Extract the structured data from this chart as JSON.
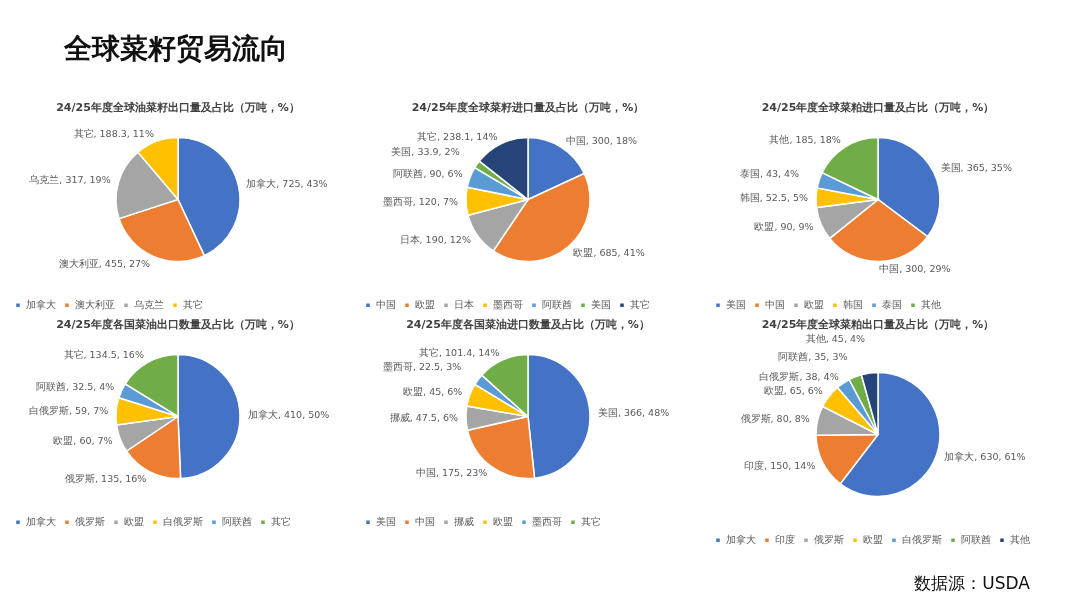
{
  "chart_data": [
    {
      "type": "pie",
      "title": "24/25年度全球油菜籽出口量及占比（万吨，%）",
      "categories": [
        "加拿大",
        "澳大利亚",
        "乌克兰",
        "其它"
      ],
      "values": [
        725,
        455,
        317,
        188.3
      ],
      "colors": [
        "#4472c4",
        "#ed7d31",
        "#a5a5a5",
        "#ffc000"
      ],
      "value_labels": [
        "加拿大, 725, 43%",
        "澳大利亚, 455, 27%",
        "乌克兰, 317, 19%",
        "其它, 188.3, 11%"
      ],
      "legend": "bottom"
    },
    {
      "type": "pie",
      "title": "24/25年度全球菜籽进口量及占比（万吨，%）",
      "categories": [
        "中国",
        "欧盟",
        "日本",
        "墨西哥",
        "阿联酋",
        "美国",
        "其它"
      ],
      "values": [
        300,
        685,
        190,
        120,
        90,
        33.9,
        238.1
      ],
      "colors": [
        "#4472c4",
        "#ed7d31",
        "#a5a5a5",
        "#ffc000",
        "#5b9bd5",
        "#70ad47",
        "#264478"
      ],
      "value_labels": [
        "中国, 300, 18%",
        "欧盟, 685, 41%",
        "日本, 190, 12%",
        "墨西哥, 120, 7%",
        "阿联酋, 90, 6%",
        "美国, 33.9, 2%",
        "其它, 238.1, 14%"
      ],
      "legend": "bottom"
    },
    {
      "type": "pie",
      "title": "24/25年度全球菜粕进口量及占比（万吨，%）",
      "categories": [
        "美国",
        "中国",
        "欧盟",
        "韩国",
        "泰国",
        "其他"
      ],
      "values": [
        365,
        300,
        90,
        52.5,
        43,
        185
      ],
      "colors": [
        "#4472c4",
        "#ed7d31",
        "#a5a5a5",
        "#ffc000",
        "#5b9bd5",
        "#70ad47"
      ],
      "value_labels": [
        "美国, 365, 35%",
        "中国, 300, 29%",
        "欧盟, 90, 9%",
        "韩国, 52.5, 5%",
        "泰国, 43, 4%",
        "其他, 185, 18%"
      ],
      "legend": "bottom"
    },
    {
      "type": "pie",
      "title": "24/25年度各国菜油出口数量及占比（万吨，%）",
      "categories": [
        "加拿大",
        "俄罗斯",
        "欧盟",
        "白俄罗斯",
        "阿联酋",
        "其它"
      ],
      "values": [
        410,
        135,
        60,
        59,
        32.5,
        134.5
      ],
      "colors": [
        "#4472c4",
        "#ed7d31",
        "#a5a5a5",
        "#ffc000",
        "#5b9bd5",
        "#70ad47"
      ],
      "value_labels": [
        "加拿大, 410, 50%",
        "俄罗斯, 135, 16%",
        "欧盟, 60, 7%",
        "白俄罗斯, 59, 7%",
        "阿联酋, 32.5, 4%",
        "其它, 134.5, 16%"
      ],
      "legend": "bottom"
    },
    {
      "type": "pie",
      "title": "24/25年度各国菜油进口数量及占比（万吨，%）",
      "categories": [
        "美国",
        "中国",
        "挪威",
        "欧盟",
        "墨西哥",
        "其它"
      ],
      "values": [
        366,
        175,
        47.5,
        45,
        22.5,
        101.4
      ],
      "colors": [
        "#4472c4",
        "#ed7d31",
        "#a5a5a5",
        "#ffc000",
        "#5b9bd5",
        "#70ad47"
      ],
      "value_labels": [
        "美国, 366, 48%",
        "中国, 175, 23%",
        "挪威, 47.5, 6%",
        "欧盟, 45, 6%",
        "墨西哥, 22.5, 3%",
        "其它, 101.4, 14%"
      ],
      "legend": "bottom"
    },
    {
      "type": "pie",
      "title": "24/25年度全球菜粕出口量及占比（万吨，%）",
      "categories": [
        "加拿大",
        "印度",
        "俄罗斯",
        "欧盟",
        "白俄罗斯",
        "阿联酋",
        "其他"
      ],
      "values": [
        630,
        150,
        80,
        65,
        38,
        35,
        45
      ],
      "colors": [
        "#4472c4",
        "#ed7d31",
        "#a5a5a5",
        "#ffc000",
        "#5b9bd5",
        "#70ad47",
        "#264478"
      ],
      "value_labels": [
        "加拿大, 630, 61%",
        "印度, 150, 14%",
        "俄罗斯, 80, 8%",
        "欧盟, 65, 6%",
        "白俄罗斯, 38, 4%",
        "阿联酋, 35, 3%",
        "其他, 45, 4%"
      ],
      "legend": "bottom"
    },
    {
      "type": "other",
      "title": "全球菜籽贸易流向",
      "annotations": [
        "数据源：USDA"
      ]
    }
  ]
}
